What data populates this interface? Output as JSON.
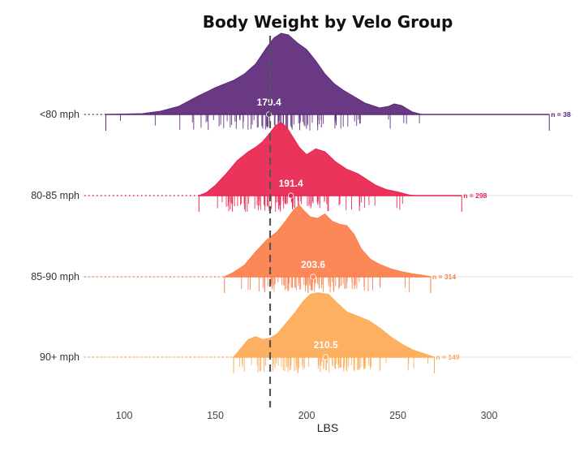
{
  "chart_data": {
    "type": "ridgeline",
    "title": "Body Weight by Velo Group",
    "xlabel": "LBS",
    "ylabel": "",
    "xlim": [
      78,
      343
    ],
    "xticks": [
      100,
      150,
      200,
      250,
      300
    ],
    "reference_line": 180,
    "grid": "horizontal baselines only",
    "series": [
      {
        "name": "<80 mph",
        "color": "#5e2a7a",
        "mean_label": "179.4",
        "mean": 179.4,
        "n_label": "n = 38",
        "range": [
          90,
          333
        ],
        "density": [
          [
            90,
            0
          ],
          [
            110,
            0.01
          ],
          [
            120,
            0.04
          ],
          [
            130,
            0.1
          ],
          [
            140,
            0.22
          ],
          [
            150,
            0.33
          ],
          [
            160,
            0.42
          ],
          [
            166,
            0.5
          ],
          [
            172,
            0.62
          ],
          [
            178,
            0.82
          ],
          [
            182,
            0.94
          ],
          [
            186,
            1.0
          ],
          [
            190,
            0.98
          ],
          [
            195,
            0.88
          ],
          [
            200,
            0.8
          ],
          [
            205,
            0.66
          ],
          [
            210,
            0.5
          ],
          [
            215,
            0.38
          ],
          [
            220,
            0.3
          ],
          [
            226,
            0.22
          ],
          [
            232,
            0.14
          ],
          [
            240,
            0.08
          ],
          [
            245,
            0.1
          ],
          [
            248,
            0.13
          ],
          [
            252,
            0.11
          ],
          [
            258,
            0.03
          ],
          [
            263,
            0
          ]
        ]
      },
      {
        "name": "80-85 mph",
        "color": "#e8254f",
        "mean_label": "191.4",
        "mean": 191.4,
        "n_label": "n = 298",
        "range": [
          141,
          285
        ],
        "density": [
          [
            141,
            0
          ],
          [
            145,
            0.04
          ],
          [
            150,
            0.14
          ],
          [
            156,
            0.3
          ],
          [
            162,
            0.48
          ],
          [
            168,
            0.6
          ],
          [
            172,
            0.66
          ],
          [
            176,
            0.74
          ],
          [
            180,
            0.86
          ],
          [
            183,
            0.96
          ],
          [
            186,
            1.0
          ],
          [
            189,
            0.94
          ],
          [
            192,
            0.82
          ],
          [
            196,
            0.66
          ],
          [
            200,
            0.56
          ],
          [
            205,
            0.64
          ],
          [
            210,
            0.6
          ],
          [
            216,
            0.46
          ],
          [
            222,
            0.36
          ],
          [
            228,
            0.3
          ],
          [
            233,
            0.22
          ],
          [
            238,
            0.14
          ],
          [
            244,
            0.08
          ],
          [
            250,
            0.05
          ],
          [
            256,
            0.01
          ],
          [
            260,
            0
          ]
        ]
      },
      {
        "name": "85-90 mph",
        "color": "#fc7f4c",
        "mean_label": "203.6",
        "mean": 203.6,
        "n_label": "n = 314",
        "range": [
          155,
          268
        ],
        "density": [
          [
            155,
            0
          ],
          [
            160,
            0.06
          ],
          [
            166,
            0.16
          ],
          [
            172,
            0.34
          ],
          [
            178,
            0.5
          ],
          [
            184,
            0.62
          ],
          [
            189,
            0.78
          ],
          [
            193,
            0.92
          ],
          [
            196,
            0.98
          ],
          [
            198,
            0.92
          ],
          [
            202,
            0.82
          ],
          [
            206,
            0.8
          ],
          [
            210,
            0.86
          ],
          [
            214,
            0.76
          ],
          [
            218,
            0.72
          ],
          [
            222,
            0.7
          ],
          [
            226,
            0.58
          ],
          [
            230,
            0.38
          ],
          [
            235,
            0.24
          ],
          [
            240,
            0.17
          ],
          [
            246,
            0.11
          ],
          [
            252,
            0.07
          ],
          [
            258,
            0.04
          ],
          [
            264,
            0.02
          ],
          [
            268,
            0
          ]
        ]
      },
      {
        "name": "90+ mph",
        "color": "#fdaa55",
        "mean_label": "210.5",
        "mean": 210.5,
        "n_label": "n = 149",
        "range": [
          160,
          270
        ],
        "density": [
          [
            160,
            0
          ],
          [
            164,
            0.12
          ],
          [
            168,
            0.24
          ],
          [
            172,
            0.28
          ],
          [
            176,
            0.24
          ],
          [
            180,
            0.26
          ],
          [
            184,
            0.32
          ],
          [
            188,
            0.44
          ],
          [
            194,
            0.62
          ],
          [
            198,
            0.76
          ],
          [
            202,
            0.86
          ],
          [
            206,
            0.88
          ],
          [
            212,
            0.86
          ],
          [
            216,
            0.76
          ],
          [
            222,
            0.62
          ],
          [
            228,
            0.56
          ],
          [
            234,
            0.5
          ],
          [
            240,
            0.4
          ],
          [
            246,
            0.28
          ],
          [
            252,
            0.18
          ],
          [
            258,
            0.1
          ],
          [
            264,
            0.05
          ],
          [
            270,
            0
          ]
        ]
      }
    ]
  }
}
